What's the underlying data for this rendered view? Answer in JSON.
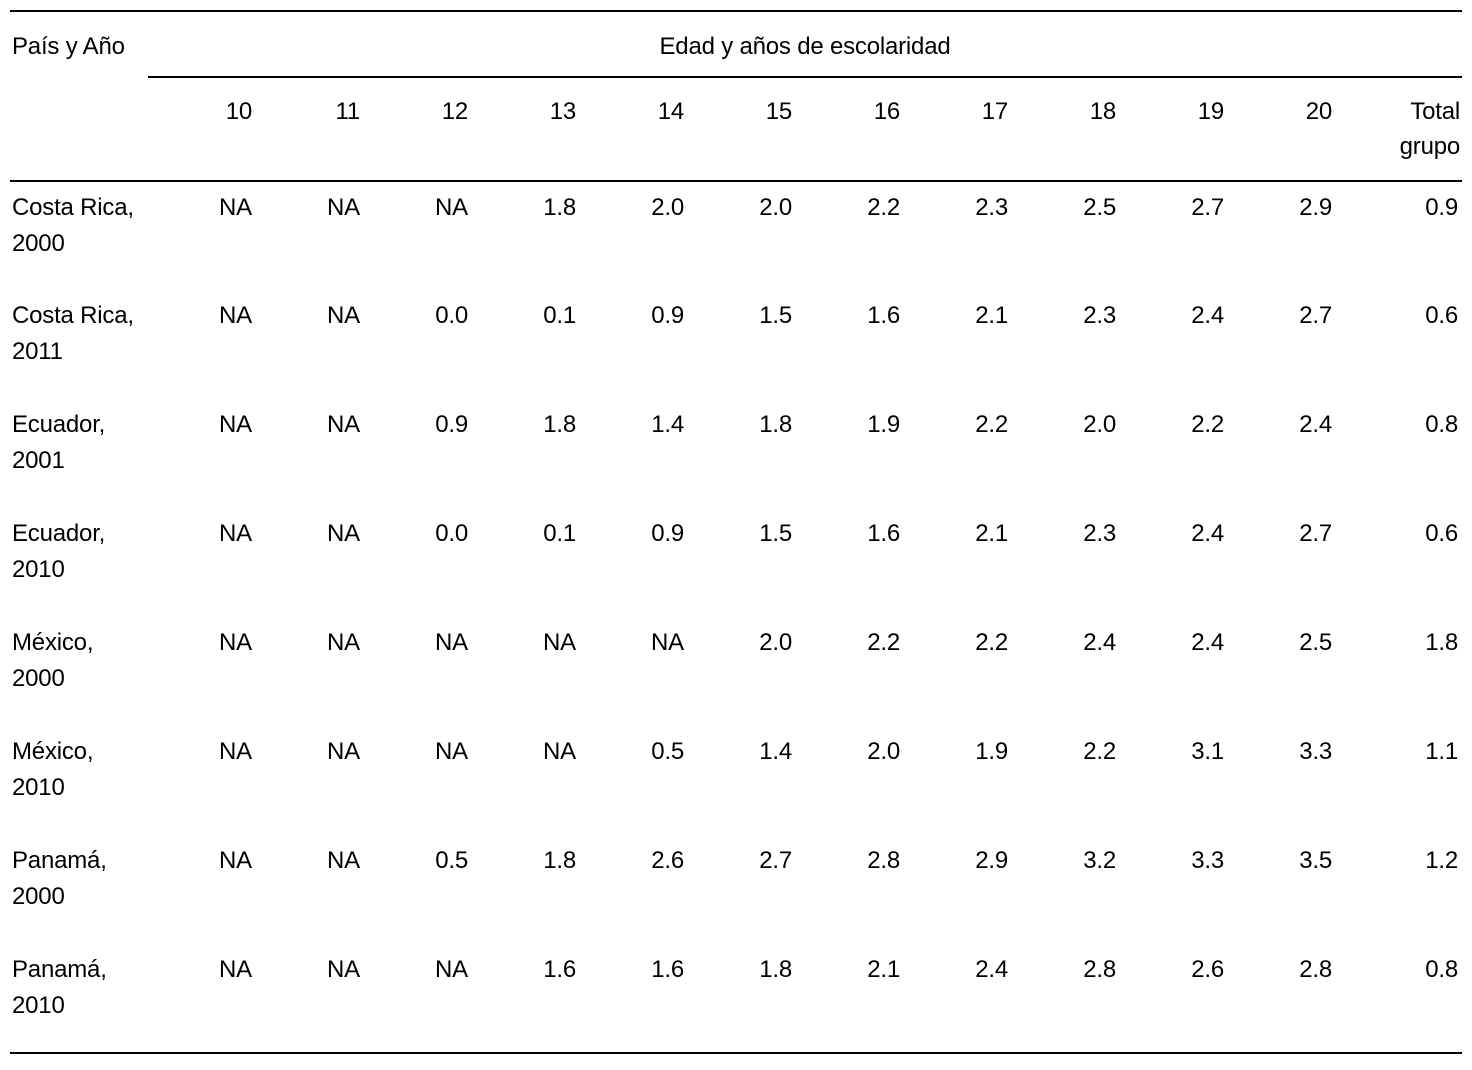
{
  "table": {
    "corner_header": "País y Año",
    "span_header": "Edad y años de escolaridad",
    "age_columns": [
      "10",
      "11",
      "12",
      "13",
      "14",
      "15",
      "16",
      "17",
      "18",
      "19",
      "20"
    ],
    "total_header_line1": "Total",
    "total_header_line2": "grupo",
    "rows": [
      {
        "country": "Costa Rica,",
        "year": "2000",
        "values": [
          "NA",
          "NA",
          "NA",
          "1.8",
          "2.0",
          "2.0",
          "2.2",
          "2.3",
          "2.5",
          "2.7",
          "2.9",
          "0.9"
        ]
      },
      {
        "country": "Costa Rica,",
        "year": "2011",
        "values": [
          "NA",
          "NA",
          "0.0",
          "0.1",
          "0.9",
          "1.5",
          "1.6",
          "2.1",
          "2.3",
          "2.4",
          "2.7",
          "0.6"
        ]
      },
      {
        "country": "Ecuador,",
        "year": "2001",
        "values": [
          "NA",
          "NA",
          "0.9",
          "1.8",
          "1.4",
          "1.8",
          "1.9",
          "2.2",
          "2.0",
          "2.2",
          "2.4",
          "0.8"
        ]
      },
      {
        "country": "Ecuador,",
        "year": "2010",
        "values": [
          "NA",
          "NA",
          "0.0",
          "0.1",
          "0.9",
          "1.5",
          "1.6",
          "2.1",
          "2.3",
          "2.4",
          "2.7",
          "0.6"
        ]
      },
      {
        "country": "México,",
        "year": "2000",
        "values": [
          "NA",
          "NA",
          "NA",
          "NA",
          "NA",
          "2.0",
          "2.2",
          "2.2",
          "2.4",
          "2.4",
          "2.5",
          "1.8"
        ]
      },
      {
        "country": "México,",
        "year": "2010",
        "values": [
          "NA",
          "NA",
          "NA",
          "NA",
          "0.5",
          "1.4",
          "2.0",
          "1.9",
          "2.2",
          "3.1",
          "3.3",
          "1.1"
        ]
      },
      {
        "country": "Panamá,",
        "year": "2000",
        "values": [
          "NA",
          "NA",
          "0.5",
          "1.8",
          "2.6",
          "2.7",
          "2.8",
          "2.9",
          "3.2",
          "3.3",
          "3.5",
          "1.2"
        ]
      },
      {
        "country": "Panamá,",
        "year": "2010",
        "values": [
          "NA",
          "NA",
          "NA",
          "1.6",
          "1.6",
          "1.8",
          "2.1",
          "2.4",
          "2.8",
          "2.6",
          "2.8",
          "0.8"
        ]
      }
    ]
  }
}
